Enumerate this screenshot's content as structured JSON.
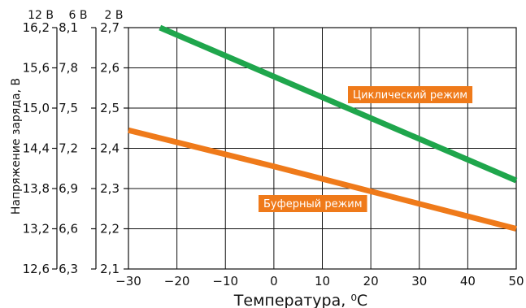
{
  "chart_data": {
    "type": "line",
    "xlabel": "Температура, ⁰С",
    "ylabel": "Напряжение заряда, В",
    "xlim": [
      -30,
      50
    ],
    "x_ticks": [
      "−30",
      "−20",
      "−10",
      "0",
      "10",
      "20",
      "30",
      "40",
      "50"
    ],
    "ylim": [
      2.1,
      2.7
    ],
    "y_axes": [
      {
        "header": "12 В",
        "ticks": [
          "12,6",
          "13,2",
          "13,8",
          "14,4",
          "15,0",
          "15,6",
          "16,2"
        ]
      },
      {
        "header": "6 В",
        "ticks": [
          "6,3",
          "6,6",
          "6,9",
          "7,2",
          "7,5",
          "7,8",
          "8,1"
        ]
      },
      {
        "header": "2 В",
        "ticks": [
          "2,1",
          "2,2",
          "2,3",
          "2,4",
          "2,5",
          "2,6",
          "2,7"
        ]
      }
    ],
    "grid": true,
    "series": [
      {
        "name": "Циклический режим",
        "color": "#1fa64c",
        "x": [
          -23.5,
          50
        ],
        "y": [
          2.7,
          2.32
        ]
      },
      {
        "name": "Буферный режим",
        "color": "#ef7a1a",
        "x": [
          -30,
          0,
          50
        ],
        "y": [
          2.445,
          2.355,
          2.2
        ]
      }
    ]
  }
}
